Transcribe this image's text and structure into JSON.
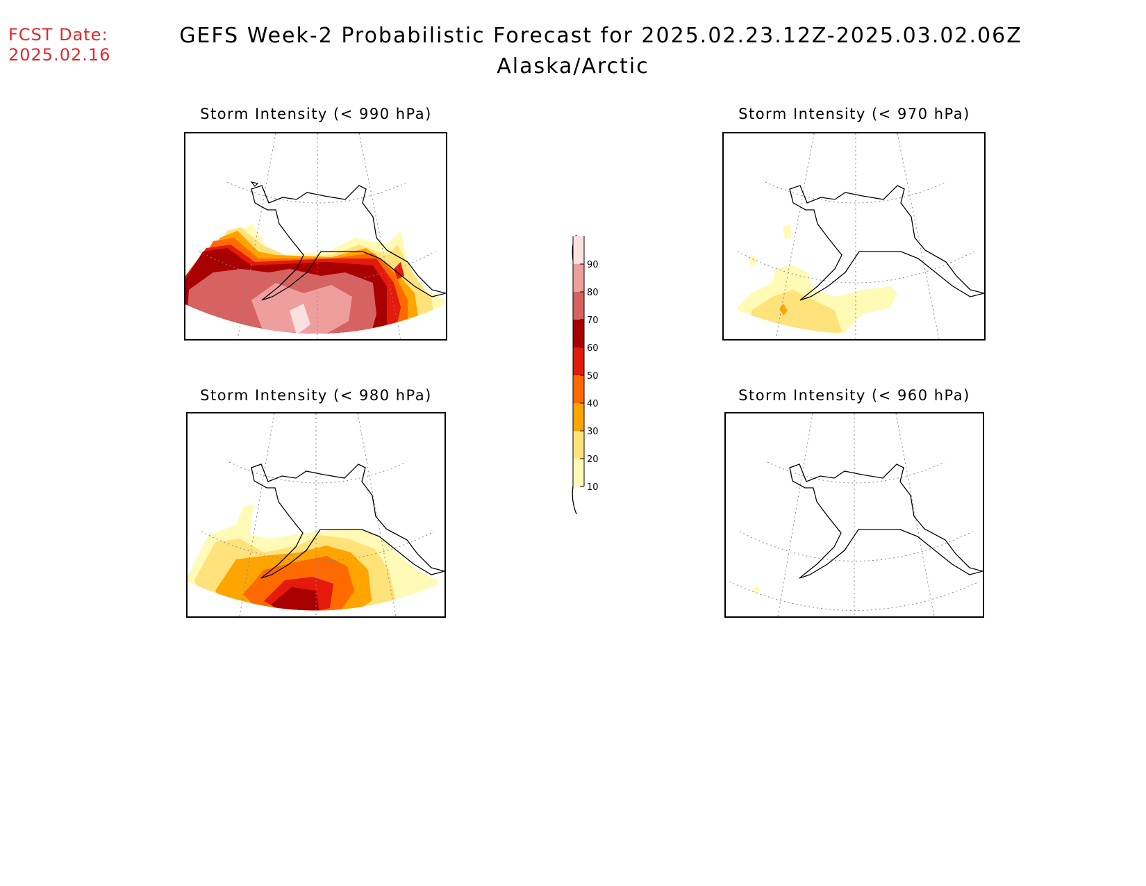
{
  "fcst_date": {
    "label": "FCST Date:",
    "value": "2025.02.16"
  },
  "title": "GEFS Week-2 Probabilistic Forecast for 2025.02.23.12Z-2025.03.02.06Z",
  "subtitle": "Alaska/Arctic",
  "panels": [
    {
      "title": "Storm Intensity (< 990 hPa)"
    },
    {
      "title": "Storm Intensity (< 970 hPa)"
    },
    {
      "title": "Storm Intensity (< 980 hPa)"
    },
    {
      "title": "Storm Intensity (< 960 hPa)"
    }
  ],
  "colorbar": {
    "labels": [
      "90",
      "80",
      "70",
      "60",
      "50",
      "40",
      "30",
      "20",
      "10"
    ],
    "colors": {
      "10": "#fffab6",
      "20": "#ffe27a",
      "30": "#ffa400",
      "40": "#ff6a00",
      "50": "#e31a0c",
      "60": "#a80000",
      "70": "#d66262",
      "80": "#ef9e9e",
      "90": "#fbe0e0"
    }
  }
}
